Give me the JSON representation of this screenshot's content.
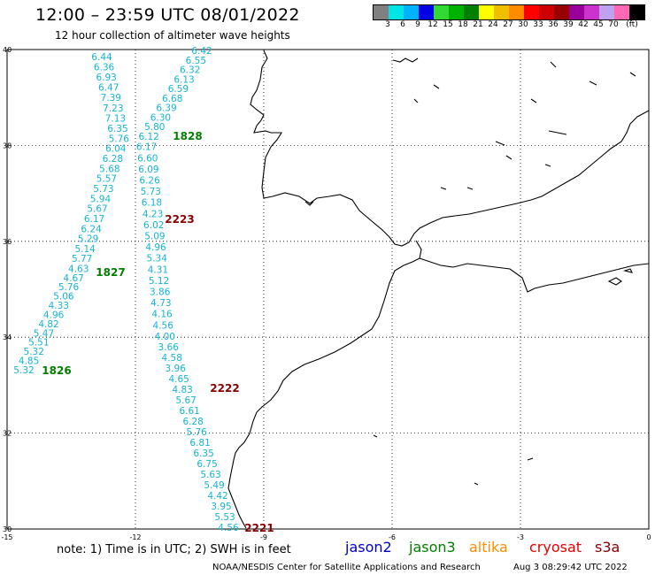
{
  "title": "12:00 – 23:59 UTC 08/01/2022",
  "subtitle": "12 hour collection of altimeter wave heights",
  "scale": {
    "colors": [
      "#808080",
      "#00e5e5",
      "#00b2ff",
      "#0000e6",
      "#32d932",
      "#00b200",
      "#008000",
      "#ffff00",
      "#f0c000",
      "#ff8c00",
      "#ff0000",
      "#cc0000",
      "#990000",
      "#990099",
      "#cc33cc",
      "#c0a0f0",
      "#ff69b4",
      "#000000"
    ],
    "labels": [
      "3",
      "6",
      "9",
      "12",
      "15",
      "18",
      "21",
      "24",
      "27",
      "30",
      "33",
      "36",
      "39",
      "42",
      "45",
      "70",
      "(ft)"
    ]
  },
  "axes": {
    "lat_labels": [
      "40",
      "38",
      "36",
      "34",
      "32",
      "30"
    ],
    "lon_labels": [
      "-15",
      "-12",
      "-9",
      "-6",
      "-3",
      "0"
    ]
  },
  "pass_labels": [
    {
      "text": "1828",
      "color": "#008000"
    },
    {
      "text": "2223",
      "color": "#8b0000"
    },
    {
      "text": "1827",
      "color": "#008000"
    },
    {
      "text": "1826",
      "color": "#008000"
    },
    {
      "text": "2222",
      "color": "#8b0000"
    },
    {
      "text": "2221",
      "color": "#8b0000"
    }
  ],
  "tracks": {
    "color": "#14b4d2",
    "track1": [
      "6.44",
      "6.36",
      "6.93",
      "6.47",
      "7.39",
      "7.23",
      "7.13",
      "6.35",
      "5.76",
      "6.04",
      "6.28",
      "5.68",
      "5.57",
      "5.73",
      "5.94",
      "5.67",
      "6.17",
      "6.24",
      "5.29",
      "5.14",
      "5.77",
      "4.63",
      "4.67",
      "5.76",
      "5.06",
      "4.33",
      "4.96",
      "4.82",
      "5.47",
      "5.51",
      "5.32",
      "4.85",
      "5.32"
    ],
    "track2": [
      "6.42",
      "6.55",
      "6.32",
      "6.13",
      "6.59",
      "6.68",
      "6.39",
      "6.30",
      "5.80",
      "6.12",
      "6.17",
      "6.60",
      "6.09",
      "6.26",
      "5.73",
      "6.18",
      "4.23",
      "6.02",
      "5.09",
      "4.96",
      "5.34",
      "4.31",
      "5.12",
      "3.86",
      "4.73",
      "4.16",
      "4.56",
      "4.00",
      "3.66",
      "4.58",
      "3.96",
      "4.65",
      "4.83",
      "5.67",
      "6.61",
      "6.28",
      "5.76",
      "6.81",
      "6.35",
      "6.75",
      "5.63",
      "5.49",
      "4.42",
      "3.95",
      "5.53",
      "4.56"
    ]
  },
  "footer": {
    "note": "note: 1) Time is in UTC; 2) SWH is in feet",
    "satellites": [
      {
        "name": "jason2",
        "color": "#0000cc"
      },
      {
        "name": "jason3",
        "color": "#008000"
      },
      {
        "name": "altika",
        "color": "#ff8c00"
      },
      {
        "name": "cryosat",
        "color": "#e60000"
      },
      {
        "name": "s3a",
        "color": "#8b0000"
      }
    ],
    "credit": "NOAA/NESDIS Center for Satellite Applications and Research",
    "timestamp": "Aug  3 08:29:42 UTC 2022"
  }
}
